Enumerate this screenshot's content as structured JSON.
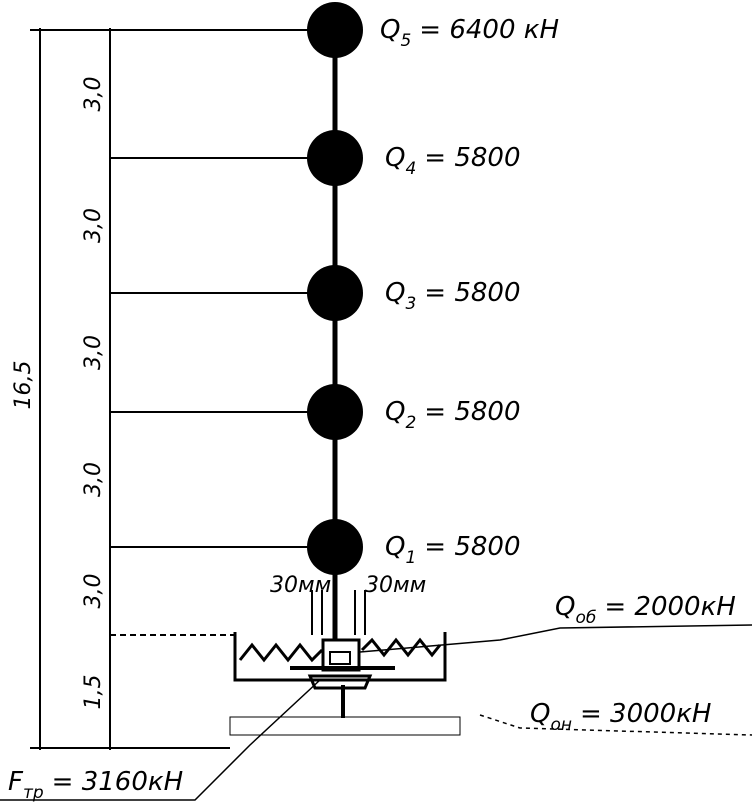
{
  "masses": [
    {
      "symbol": "Q",
      "index": "5",
      "value": "= 6400 кН"
    },
    {
      "symbol": "Q",
      "index": "4",
      "value": "= 5800"
    },
    {
      "symbol": "Q",
      "index": "3",
      "value": "= 5800"
    },
    {
      "symbol": "Q",
      "index": "2",
      "value": "= 5800"
    },
    {
      "symbol": "Q",
      "index": "1",
      "value": "= 5800"
    }
  ],
  "dimensions": {
    "storeys": [
      "3,0",
      "3,0",
      "3,0",
      "3,0",
      "3,0"
    ],
    "base": "1,5",
    "total": "16,5"
  },
  "gaps": [
    "30мм",
    "30мм"
  ],
  "loads": [
    {
      "symbol": "Q",
      "index": "об",
      "value": "= 2000кН"
    },
    {
      "symbol": "Q",
      "index": "он",
      "value": "= 3000кН"
    },
    {
      "symbol": "F",
      "index": "тр",
      "value": "= 3160кН"
    }
  ]
}
